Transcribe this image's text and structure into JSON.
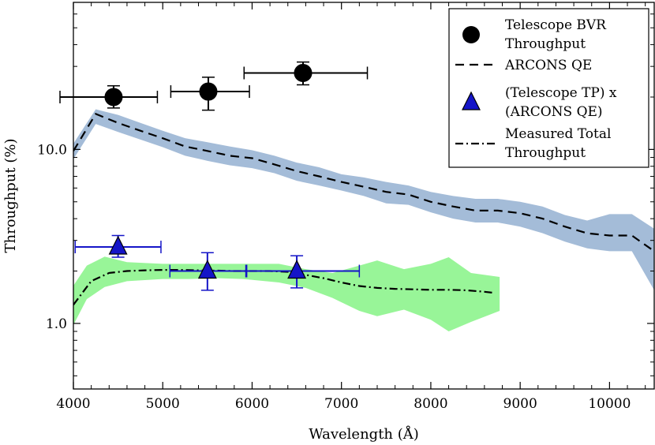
{
  "chart_data": {
    "type": "line",
    "xlabel": "Wavelength (Å)",
    "ylabel": "Throughput (%)",
    "xscale": "linear",
    "yscale": "log",
    "xlim": [
      4000,
      10500
    ],
    "ylim": [
      0.42,
      70
    ],
    "xticks": [
      4000,
      5000,
      6000,
      7000,
      8000,
      9000,
      10000
    ],
    "xtick_labels": [
      "4000",
      "5000",
      "6000",
      "7000",
      "8000",
      "9000",
      "10000"
    ],
    "yticks": [
      1.0,
      10.0
    ],
    "ytick_labels": [
      "1.0",
      "10.0"
    ],
    "legend_position": "top-right",
    "series": [
      {
        "name": "Telescope BVR Throughput",
        "kind": "points",
        "marker": "circle",
        "color": "#000000",
        "x": [
          4450,
          5510,
          6570
        ],
        "y": [
          20.0,
          21.5,
          27.5
        ],
        "xerr_low": [
          600,
          420,
          660
        ],
        "xerr_high": [
          490,
          460,
          720
        ],
        "y_low": [
          17.3,
          16.8,
          23.5
        ],
        "y_high": [
          23.2,
          26.0,
          31.8
        ]
      },
      {
        "name": "ARCONS QE",
        "kind": "line",
        "linestyle": "dashed",
        "color": "#000000",
        "band_color": "#a4bcd8",
        "x": [
          4000,
          4250,
          4500,
          4750,
          5000,
          5250,
          5500,
          5750,
          6000,
          6250,
          6500,
          6750,
          7000,
          7250,
          7500,
          7750,
          8000,
          8250,
          8500,
          8750,
          9000,
          9250,
          9500,
          9750,
          10000,
          10250,
          10500
        ],
        "y": [
          9.8,
          16.0,
          14.2,
          12.8,
          11.6,
          10.4,
          9.8,
          9.2,
          8.9,
          8.2,
          7.5,
          7.0,
          6.5,
          6.1,
          5.7,
          5.5,
          5.0,
          4.7,
          4.45,
          4.45,
          4.3,
          4.0,
          3.6,
          3.3,
          3.2,
          3.2,
          2.6
        ],
        "band_low": [
          8.8,
          14.0,
          12.6,
          11.4,
          10.3,
          9.2,
          8.6,
          8.1,
          7.8,
          7.3,
          6.6,
          6.2,
          5.8,
          5.4,
          4.9,
          4.8,
          4.35,
          4.0,
          3.8,
          3.8,
          3.6,
          3.3,
          2.95,
          2.7,
          2.6,
          2.6,
          1.55
        ],
        "band_high": [
          10.8,
          17.0,
          15.8,
          14.2,
          12.8,
          11.6,
          11.0,
          10.4,
          9.9,
          9.2,
          8.4,
          7.9,
          7.2,
          6.9,
          6.5,
          6.2,
          5.7,
          5.4,
          5.2,
          5.2,
          5.0,
          4.7,
          4.2,
          3.9,
          4.25,
          4.25,
          3.5
        ]
      },
      {
        "name": "(Telescope TP) x (ARCONS QE)",
        "kind": "points",
        "marker": "triangle",
        "color": "#1515c8",
        "x": [
          4500,
          5500,
          6500
        ],
        "y": [
          2.75,
          2.0,
          2.0
        ],
        "xerr_low": [
          480,
          420,
          560
        ],
        "xerr_high": [
          480,
          430,
          700
        ],
        "y_low": [
          2.4,
          1.55,
          1.6
        ],
        "y_high": [
          3.2,
          2.55,
          2.45
        ]
      },
      {
        "name": "Measured Total Throughput",
        "kind": "line",
        "linestyle": "dashdot",
        "color": "#000000",
        "band_color": "#98f598",
        "x": [
          4000,
          4200,
          4400,
          4600,
          4800,
          5000,
          5200,
          5400,
          5600,
          5800,
          6000,
          6200,
          6400,
          6600,
          6800,
          7000,
          7200,
          7400,
          7600,
          7800,
          8000,
          8200,
          8400,
          8600,
          8700
        ],
        "y": [
          1.28,
          1.75,
          1.95,
          2.0,
          2.02,
          2.03,
          2.03,
          2.02,
          2.01,
          2.0,
          2.0,
          2.0,
          1.98,
          1.9,
          1.82,
          1.72,
          1.64,
          1.6,
          1.58,
          1.57,
          1.56,
          1.56,
          1.55,
          1.52,
          1.5
        ],
        "band_x": [
          4000,
          4150,
          4350,
          4600,
          5000,
          5300,
          5600,
          5900,
          6300,
          6600,
          6900,
          7200,
          7400,
          7700,
          8000,
          8200,
          8450,
          8770
        ],
        "band_low": [
          0.98,
          1.38,
          1.62,
          1.75,
          1.8,
          1.8,
          1.82,
          1.8,
          1.72,
          1.6,
          1.4,
          1.18,
          1.1,
          1.2,
          1.05,
          0.9,
          1.02,
          1.18
        ],
        "band_high": [
          1.65,
          2.15,
          2.42,
          2.25,
          2.2,
          2.2,
          2.2,
          2.2,
          2.2,
          2.05,
          1.95,
          2.15,
          2.3,
          2.05,
          2.2,
          2.4,
          1.95,
          1.85
        ]
      }
    ],
    "legend": [
      {
        "marker": "circle",
        "label_lines": [
          "Telescope BVR",
          "Throughput"
        ]
      },
      {
        "marker": "dashed",
        "label_lines": [
          "ARCONS QE"
        ]
      },
      {
        "marker": "triangle",
        "label_lines": [
          "(Telescope TP) x",
          "(ARCONS QE)"
        ]
      },
      {
        "marker": "dashdot",
        "label_lines": [
          "Measured Total",
          "Throughput"
        ]
      }
    ]
  }
}
